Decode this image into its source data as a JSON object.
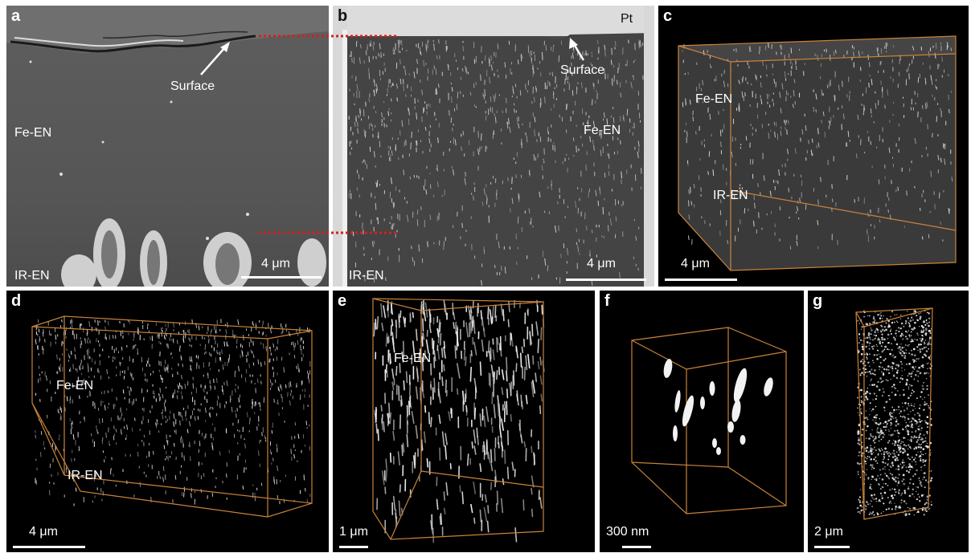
{
  "panels": {
    "a": {
      "label": "a",
      "surface": "Surface",
      "fe": "Fe-EN",
      "ir": "IR-EN",
      "scale": "4 μm"
    },
    "b": {
      "label": "b",
      "pt": "Pt",
      "surface": "Surface",
      "fe": "Fe-EN",
      "ir": "IR-EN",
      "scale": "4 μm"
    },
    "c": {
      "label": "c",
      "fe": "Fe-EN",
      "ir": "IR-EN",
      "scale": "4 μm"
    },
    "d": {
      "label": "d",
      "fe": "Fe-EN",
      "ir": "IR-EN",
      "scale": "4 μm"
    },
    "e": {
      "label": "e",
      "fe": "Fe-EN",
      "scale": "1 μm"
    },
    "f": {
      "label": "f",
      "scale": "300 nm"
    },
    "g": {
      "label": "g",
      "scale": "2 μm"
    }
  },
  "colors": {
    "box": "#c9833a",
    "guide": "#d42020",
    "particle": "#f2f2f2",
    "dark_bg": "#000000",
    "sem_bg": "#555555"
  }
}
